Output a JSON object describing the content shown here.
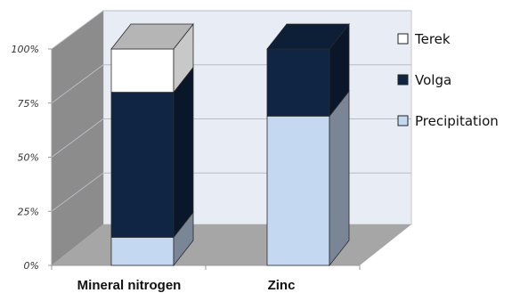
{
  "chart_data": {
    "type": "bar",
    "stacked": true,
    "percent": true,
    "three_d": true,
    "title": "",
    "xlabel": "",
    "ylabel": "",
    "ylim": [
      0,
      100
    ],
    "y_ticks": [
      "0%",
      "25%",
      "50%",
      "75%",
      "100%"
    ],
    "categories": [
      "Mineral nitrogen",
      "Zinc"
    ],
    "series": [
      {
        "name": "Precipitation",
        "color": "#c5d8f1",
        "values": [
          13,
          69
        ]
      },
      {
        "name": "Volga",
        "color": "#102443",
        "values": [
          67,
          31
        ]
      },
      {
        "name": "Terek",
        "color": "#ffffff",
        "values": [
          20,
          0
        ]
      }
    ],
    "legend": {
      "position": "right",
      "order": [
        "Terek",
        "Volga",
        "Precipitation"
      ]
    },
    "grid": true
  }
}
